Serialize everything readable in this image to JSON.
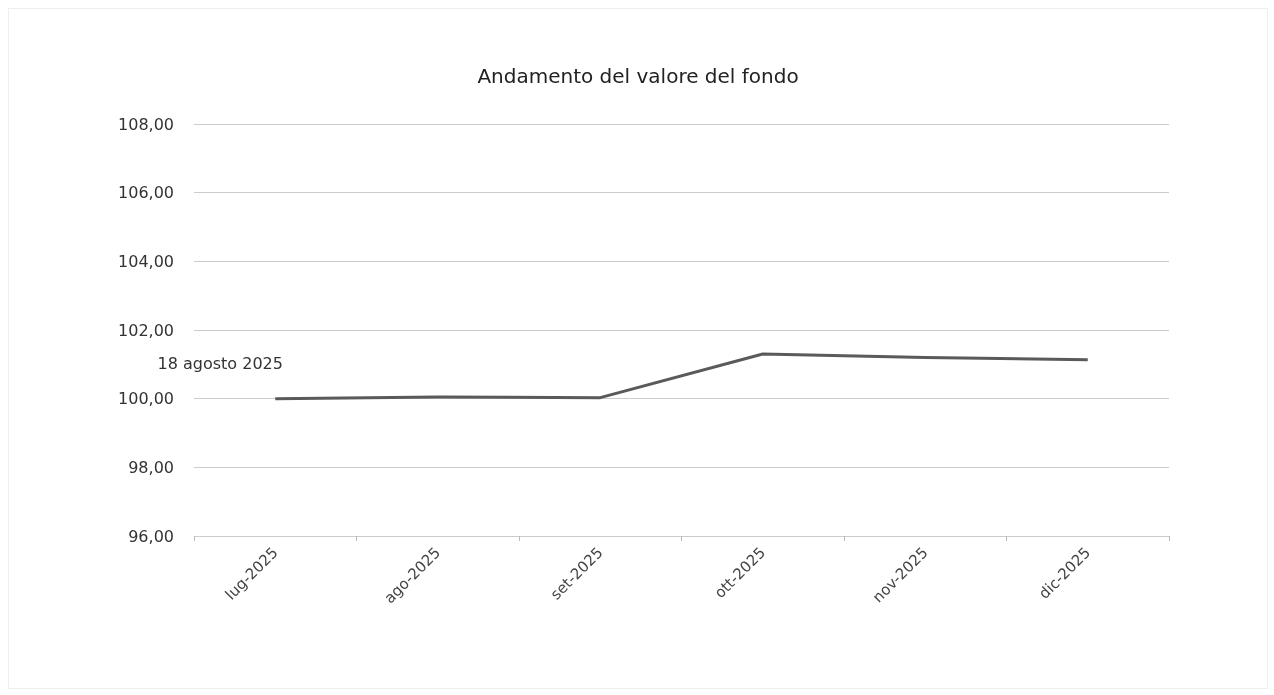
{
  "chart_data": {
    "type": "line",
    "title": "Andamento del valore del fondo",
    "categories": [
      "lug-2025",
      "ago-2025",
      "set-2025",
      "ott-2025",
      "nov-2025",
      "dic-2025"
    ],
    "series": [
      {
        "color": "#5a5a5a",
        "values": [
          100.0,
          100.05,
          100.03,
          101.3,
          101.2,
          101.13
        ]
      }
    ],
    "ylim": [
      96,
      108
    ],
    "yticks": [
      {
        "value": 96,
        "label": "96,00"
      },
      {
        "value": 98,
        "label": "98,00"
      },
      {
        "value": 100,
        "label": "100,00"
      },
      {
        "value": 102,
        "label": "102,00"
      },
      {
        "value": 104,
        "label": "104,00"
      },
      {
        "value": 106,
        "label": "106,00"
      },
      {
        "value": 108,
        "label": "108,00"
      }
    ],
    "grid": "y",
    "marker": "none",
    "line_style": "solid",
    "annotations": [
      {
        "text": "18 agosto 2025",
        "x": "lug-2025",
        "y": 100
      }
    ]
  }
}
